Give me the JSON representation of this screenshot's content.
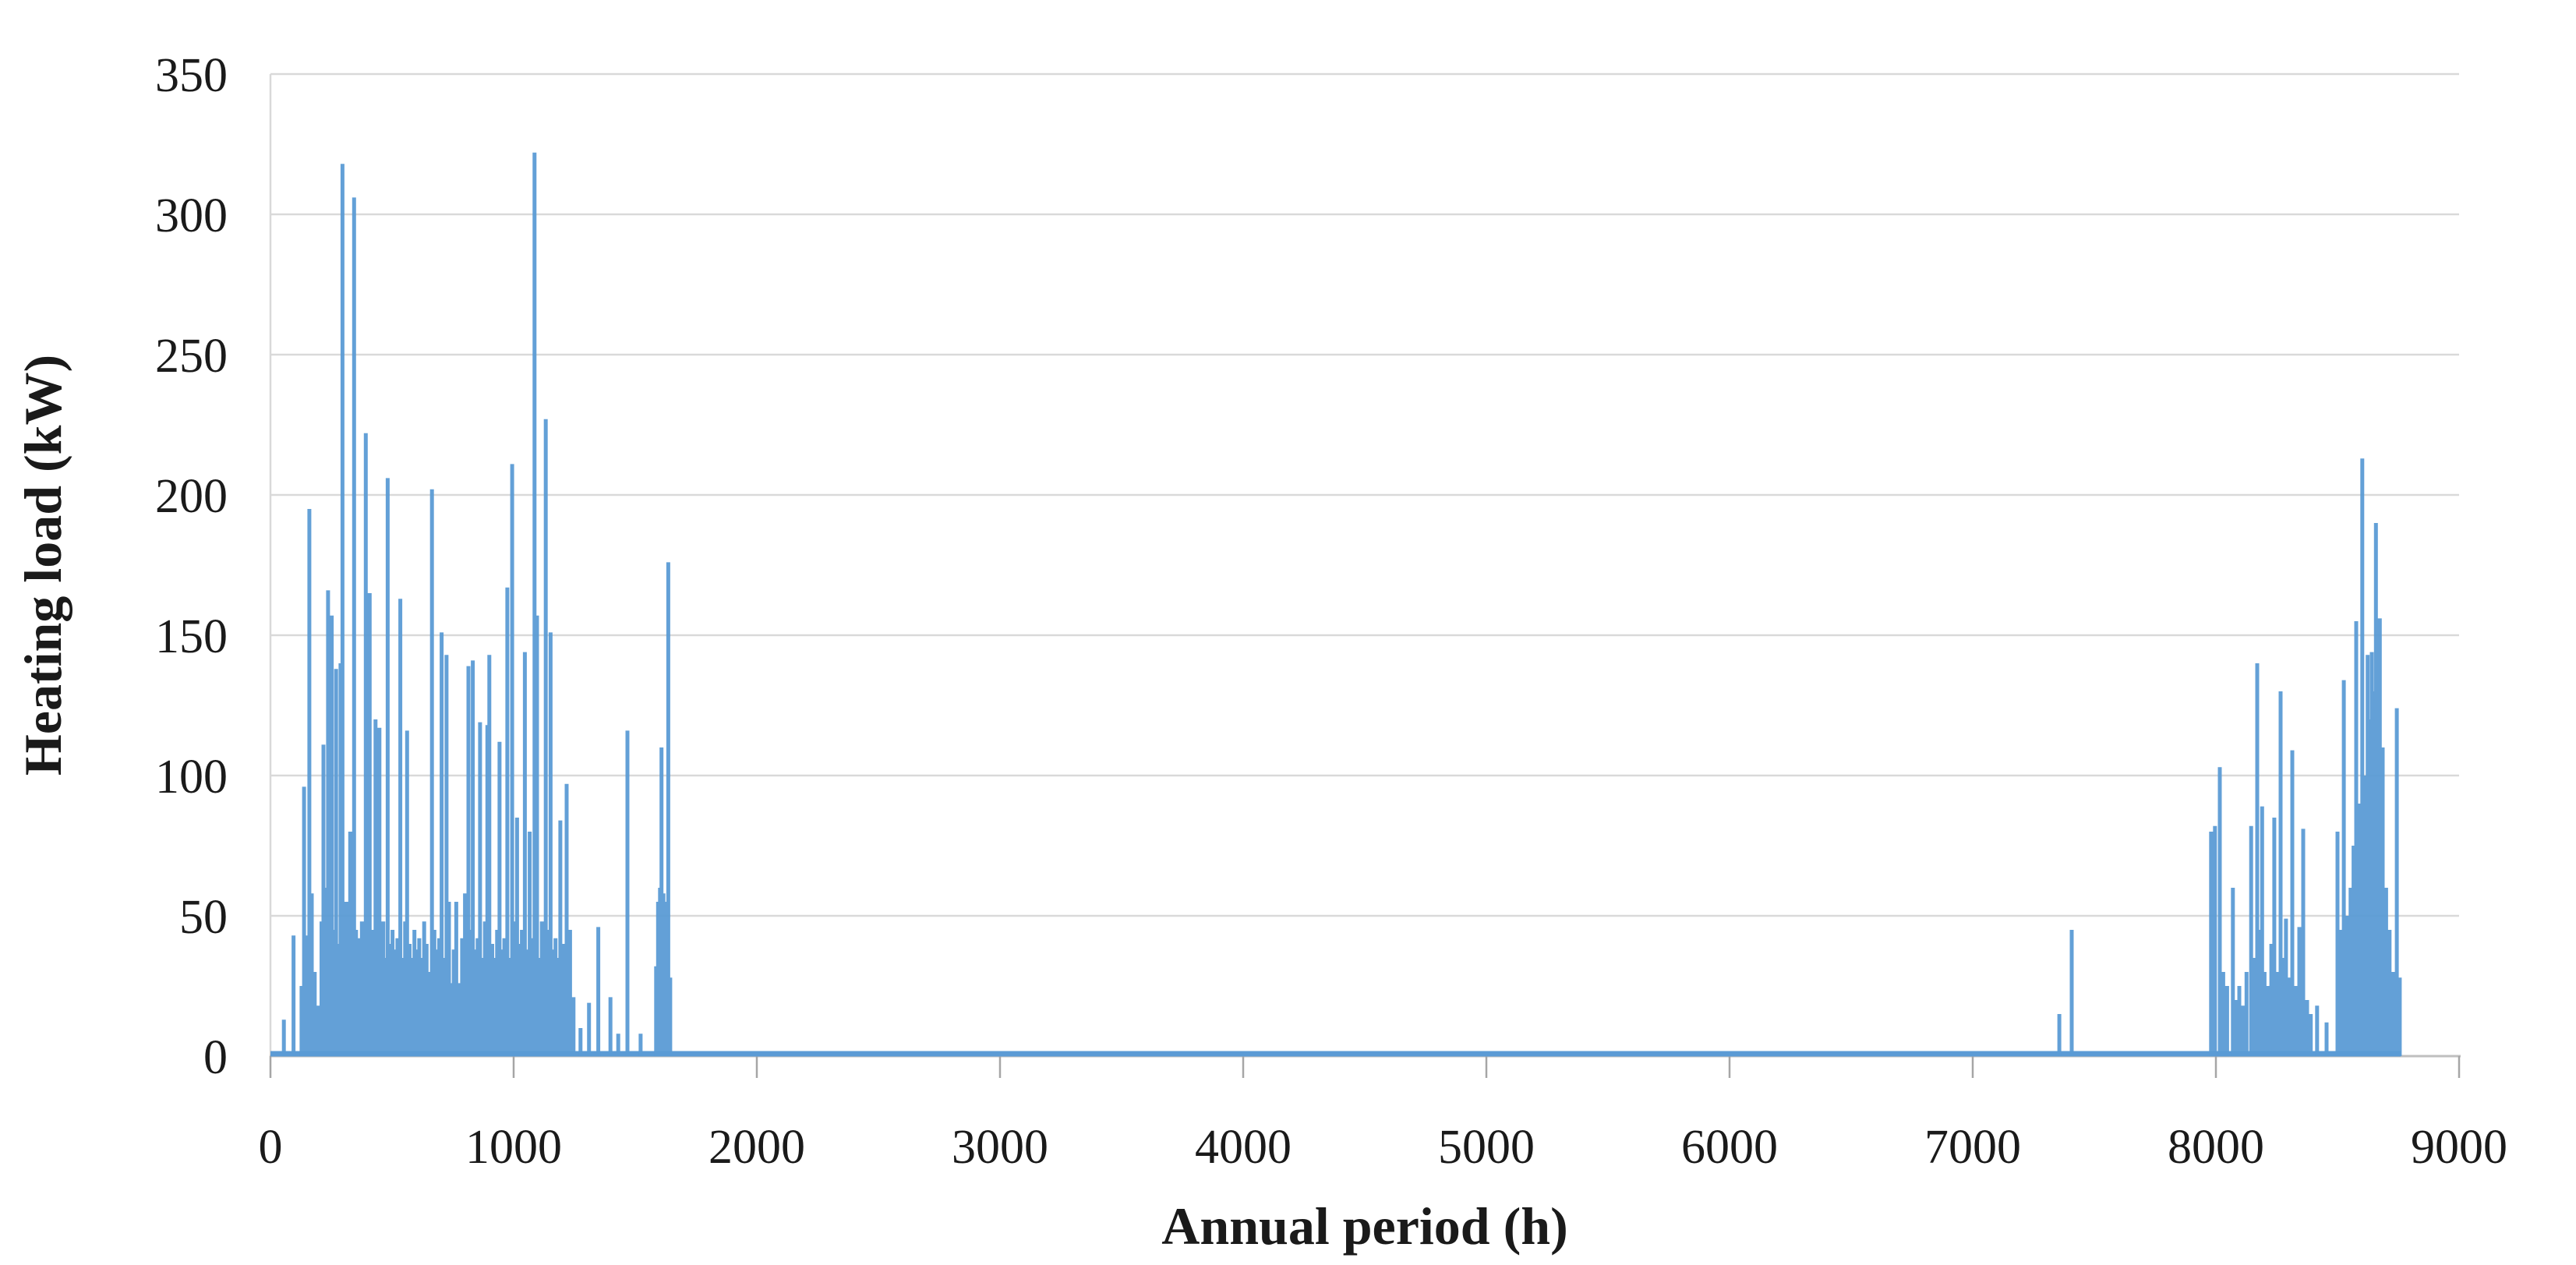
{
  "chart_data": {
    "type": "bar",
    "title": "",
    "xlabel": "Annual period (h)",
    "ylabel": "Heating load (kW)",
    "xlim": [
      0,
      9000
    ],
    "ylim": [
      0,
      350
    ],
    "x_ticks": [
      0,
      1000,
      2000,
      3000,
      4000,
      5000,
      6000,
      7000,
      8000,
      9000
    ],
    "y_ticks": [
      0,
      50,
      100,
      150,
      200,
      250,
      300,
      350
    ],
    "grid": "horizontal",
    "legend": "none",
    "series_name": "Heating load",
    "series_color": "#5B9BD5",
    "grid_color": "#D9D9D9",
    "axis_color": "#BFBFBF",
    "tick_color": "#A6A6A6",
    "text_color": "#1a1a1a",
    "baseline_span_hours": [
      0,
      8760
    ],
    "spikes": [
      [
        55,
        13
      ],
      [
        95,
        43
      ],
      [
        128,
        25
      ],
      [
        138,
        96
      ],
      [
        148,
        43
      ],
      [
        160,
        195
      ],
      [
        170,
        58
      ],
      [
        182,
        30
      ],
      [
        195,
        18
      ],
      [
        210,
        48
      ],
      [
        218,
        111
      ],
      [
        228,
        60
      ],
      [
        237,
        166
      ],
      [
        246,
        40
      ],
      [
        252,
        157
      ],
      [
        262,
        45
      ],
      [
        270,
        138
      ],
      [
        278,
        40
      ],
      [
        288,
        140
      ],
      [
        296,
        318
      ],
      [
        304,
        48
      ],
      [
        312,
        55
      ],
      [
        320,
        47
      ],
      [
        328,
        80
      ],
      [
        336,
        52
      ],
      [
        344,
        306
      ],
      [
        352,
        45
      ],
      [
        360,
        38
      ],
      [
        368,
        42
      ],
      [
        376,
        48
      ],
      [
        384,
        35
      ],
      [
        392,
        222
      ],
      [
        400,
        40
      ],
      [
        408,
        165
      ],
      [
        416,
        45
      ],
      [
        424,
        35
      ],
      [
        432,
        120
      ],
      [
        440,
        42
      ],
      [
        448,
        117
      ],
      [
        456,
        38
      ],
      [
        464,
        48
      ],
      [
        472,
        35
      ],
      [
        482,
        206
      ],
      [
        492,
        40
      ],
      [
        502,
        45
      ],
      [
        512,
        38
      ],
      [
        522,
        42
      ],
      [
        534,
        163
      ],
      [
        544,
        35
      ],
      [
        554,
        48
      ],
      [
        562,
        116
      ],
      [
        572,
        40
      ],
      [
        582,
        35
      ],
      [
        592,
        45
      ],
      [
        602,
        38
      ],
      [
        612,
        42
      ],
      [
        622,
        35
      ],
      [
        632,
        48
      ],
      [
        642,
        40
      ],
      [
        652,
        30
      ],
      [
        664,
        202
      ],
      [
        674,
        45
      ],
      [
        684,
        38
      ],
      [
        694,
        42
      ],
      [
        704,
        151
      ],
      [
        714,
        35
      ],
      [
        724,
        143
      ],
      [
        734,
        55
      ],
      [
        744,
        26
      ],
      [
        754,
        38
      ],
      [
        764,
        55
      ],
      [
        776,
        26
      ],
      [
        788,
        42
      ],
      [
        800,
        58
      ],
      [
        814,
        139
      ],
      [
        824,
        45
      ],
      [
        832,
        141
      ],
      [
        842,
        38
      ],
      [
        852,
        42
      ],
      [
        862,
        119
      ],
      [
        872,
        35
      ],
      [
        882,
        48
      ],
      [
        892,
        118
      ],
      [
        900,
        143
      ],
      [
        912,
        40
      ],
      [
        922,
        35
      ],
      [
        932,
        45
      ],
      [
        942,
        112
      ],
      [
        952,
        38
      ],
      [
        962,
        42
      ],
      [
        974,
        167
      ],
      [
        984,
        35
      ],
      [
        994,
        211
      ],
      [
        1004,
        48
      ],
      [
        1014,
        85
      ],
      [
        1024,
        40
      ],
      [
        1034,
        45
      ],
      [
        1046,
        144
      ],
      [
        1056,
        38
      ],
      [
        1066,
        80
      ],
      [
        1076,
        42
      ],
      [
        1086,
        322
      ],
      [
        1096,
        157
      ],
      [
        1106,
        35
      ],
      [
        1116,
        48
      ],
      [
        1126,
        40
      ],
      [
        1132,
        227
      ],
      [
        1142,
        45
      ],
      [
        1152,
        151
      ],
      [
        1162,
        38
      ],
      [
        1172,
        42
      ],
      [
        1182,
        35
      ],
      [
        1192,
        84
      ],
      [
        1204,
        40
      ],
      [
        1218,
        97
      ],
      [
        1232,
        45
      ],
      [
        1246,
        21
      ],
      [
        1275,
        10
      ],
      [
        1310,
        19
      ],
      [
        1348,
        46
      ],
      [
        1398,
        21
      ],
      [
        1430,
        8
      ],
      [
        1468,
        116
      ],
      [
        1522,
        8
      ],
      [
        1586,
        32
      ],
      [
        1594,
        55
      ],
      [
        1602,
        60
      ],
      [
        1608,
        110
      ],
      [
        1616,
        58
      ],
      [
        1624,
        40
      ],
      [
        1630,
        55
      ],
      [
        1636,
        176
      ],
      [
        1644,
        28
      ],
      [
        7356,
        15
      ],
      [
        7407,
        45
      ],
      [
        7980,
        80
      ],
      [
        7996,
        82
      ],
      [
        8016,
        103
      ],
      [
        8030,
        30
      ],
      [
        8046,
        25
      ],
      [
        8070,
        60
      ],
      [
        8084,
        20
      ],
      [
        8096,
        25
      ],
      [
        8110,
        18
      ],
      [
        8126,
        30
      ],
      [
        8145,
        82
      ],
      [
        8158,
        35
      ],
      [
        8170,
        140
      ],
      [
        8180,
        45
      ],
      [
        8190,
        89
      ],
      [
        8200,
        30
      ],
      [
        8214,
        25
      ],
      [
        8228,
        40
      ],
      [
        8240,
        85
      ],
      [
        8252,
        30
      ],
      [
        8266,
        130
      ],
      [
        8278,
        35
      ],
      [
        8288,
        49
      ],
      [
        8300,
        28
      ],
      [
        8314,
        109
      ],
      [
        8328,
        25
      ],
      [
        8343,
        46
      ],
      [
        8359,
        81
      ],
      [
        8375,
        20
      ],
      [
        8390,
        15
      ],
      [
        8416,
        18
      ],
      [
        8455,
        12
      ],
      [
        8500,
        80
      ],
      [
        8513,
        45
      ],
      [
        8526,
        134
      ],
      [
        8540,
        50
      ],
      [
        8554,
        60
      ],
      [
        8566,
        75
      ],
      [
        8577,
        155
      ],
      [
        8590,
        90
      ],
      [
        8602,
        213
      ],
      [
        8614,
        100
      ],
      [
        8624,
        143
      ],
      [
        8633,
        120
      ],
      [
        8641,
        144
      ],
      [
        8650,
        130
      ],
      [
        8658,
        190
      ],
      [
        8666,
        140
      ],
      [
        8674,
        156
      ],
      [
        8686,
        110
      ],
      [
        8700,
        60
      ],
      [
        8714,
        45
      ],
      [
        8728,
        30
      ],
      [
        8744,
        124
      ],
      [
        8756,
        28
      ]
    ]
  }
}
